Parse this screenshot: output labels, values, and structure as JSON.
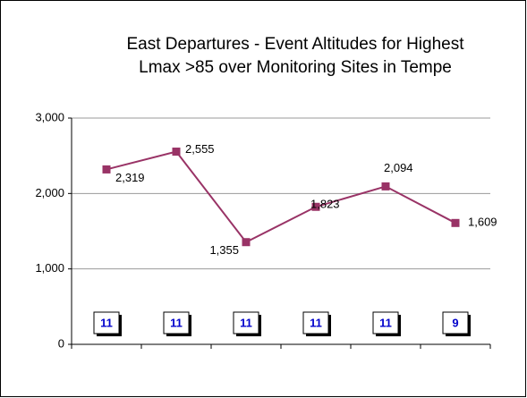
{
  "chart_data": {
    "type": "line",
    "title": [
      "East Departures -  Event Altitudes for Highest",
      "Lmax >85 over Monitoring Sites in Tempe"
    ],
    "categories": [
      null,
      null,
      null,
      null,
      null,
      null
    ],
    "series": [
      {
        "name": null,
        "color": "#993366",
        "values": [
          2319,
          2555,
          1355,
          1823,
          2094,
          1609
        ],
        "value_labels": [
          "2,319",
          "2,555",
          "1,355",
          "1,823",
          "2,094",
          "1,609"
        ]
      }
    ],
    "box_labels": [
      11,
      11,
      11,
      11,
      11,
      9
    ],
    "box_color": "#0000cc",
    "ylim": [
      0,
      3000
    ],
    "yticks": [
      0,
      {
        "value": 1000,
        "label": "1,000"
      },
      {
        "value": 2000,
        "label": "2,000"
      },
      {
        "value": 3000,
        "label": "3,000"
      }
    ],
    "grid": true
  }
}
